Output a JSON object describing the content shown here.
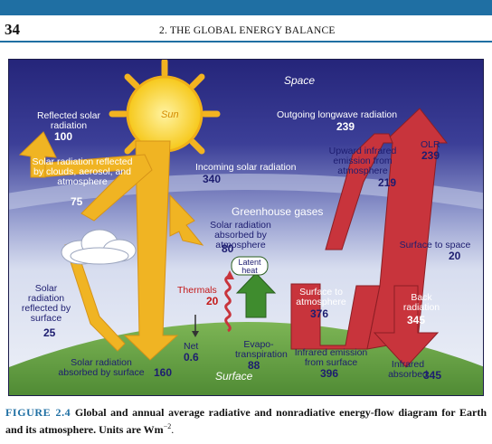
{
  "page": {
    "number": "34",
    "running_head": "2. THE GLOBAL ENERGY BALANCE"
  },
  "figure": {
    "space_label": "Space",
    "surface_label": "Surface",
    "greenhouse_label": "Greenhouse gases",
    "sun_label": "Sun",
    "latent_heat_label": "Latent heat",
    "flows": {
      "reflected_solar": {
        "label": "Reflected solar radiation",
        "value": "100"
      },
      "reflected_by_clouds": {
        "label": "Solar radiation reflected by clouds, aerosol, and atmosphere",
        "value": "75"
      },
      "incoming_solar": {
        "label": "Incoming solar radiation",
        "value": "340"
      },
      "absorbed_by_atmosphere": {
        "label": "Solar radiation absorbed by atmosphere",
        "value": "80"
      },
      "reflected_by_surface": {
        "label": "Solar radiation reflected by surface",
        "value": "25"
      },
      "absorbed_by_surface": {
        "label": "Solar radiation absorbed by surface",
        "value": "160"
      },
      "thermals": {
        "label": "Thermals",
        "value": "20"
      },
      "net": {
        "label": "Net",
        "value": "0.6"
      },
      "evapotranspiration": {
        "label": "Evapo- transpiration",
        "value": "88"
      },
      "outgoing_longwave": {
        "label": "Outgoing longwave radiation",
        "value": "239"
      },
      "upward_infrared": {
        "label": "Upward infrared emission from atmosphere",
        "value": "219"
      },
      "olr": {
        "label": "OLR",
        "value": "239"
      },
      "surface_to_atmosphere": {
        "label": "Surface to atmosphere",
        "value": "376"
      },
      "surface_to_space": {
        "label": "Surface to space",
        "value": "20"
      },
      "back_radiation": {
        "label": "Back radiation",
        "value": "345"
      },
      "infrared_emission_surface": {
        "label": "Infrared emission from surface",
        "value": "396"
      },
      "infrared_absorbed": {
        "label": "Infrared absorbed",
        "value": "345"
      }
    },
    "colors": {
      "space": "#2b2b82",
      "sky_light": "#e6ecf5",
      "solar_arrow": "#f2b21e",
      "ir_arrow": "#c8343c",
      "ground": "#6ea84a",
      "sun": "#f7d21c"
    }
  },
  "caption": {
    "label": "FIGURE 2.4",
    "text": "Global and annual average radiative and nonradiative energy-flow diagram for Earth and its atmosphere. Units are Wm",
    "superscript": "−2",
    "end": "."
  }
}
